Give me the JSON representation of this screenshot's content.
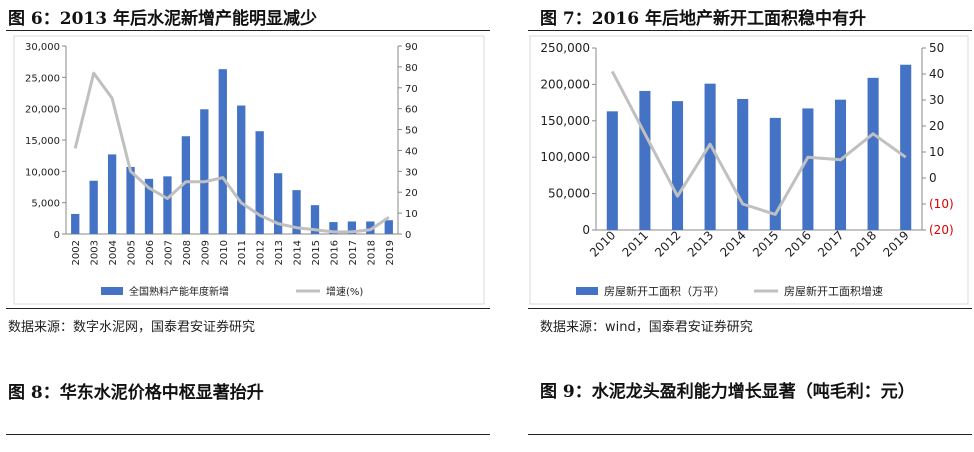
{
  "figures": [
    {
      "title": "图 6：2013 年后水泥新增产能明显减少",
      "source": "数据来源：数字水泥网，国泰君安证券研究"
    },
    {
      "title": "图 7：2016 年后地产新开工面积稳中有升",
      "source": "数据来源：wind，国泰君安证券研究"
    },
    {
      "title": "图 8：华东水泥价格中枢显著抬升"
    },
    {
      "title": "图 9：水泥龙头盈利能力增长显著（吨毛利：元）"
    }
  ],
  "chart_data": [
    {
      "type": "bar",
      "categories": [
        "2002",
        "2003",
        "2004",
        "2005",
        "2006",
        "2007",
        "2008",
        "2009",
        "2010",
        "2011",
        "2012",
        "2013",
        "2014",
        "2015",
        "2016",
        "2017",
        "2018",
        "2019"
      ],
      "series": [
        {
          "name": "全国熟料产能年度新增",
          "type": "bar",
          "axis": "left",
          "values": [
            3200,
            8500,
            12700,
            10700,
            8800,
            9200,
            15600,
            19900,
            26300,
            20500,
            16400,
            9700,
            7000,
            4600,
            1900,
            2000,
            2000,
            2200
          ]
        },
        {
          "name": "增速(%)",
          "type": "line",
          "axis": "right",
          "values": [
            41,
            77,
            65,
            30,
            22,
            17,
            25,
            25,
            27,
            15,
            9,
            5,
            3,
            2,
            1,
            1,
            2,
            8
          ]
        }
      ],
      "ylim_left": [
        0,
        30000
      ],
      "yticks_left": [
        "0",
        "5,000",
        "10,000",
        "15,000",
        "20,000",
        "25,000",
        "30,000"
      ],
      "ylim_right": [
        0,
        90
      ],
      "yticks_right": [
        "0",
        "10",
        "20",
        "30",
        "40",
        "50",
        "60",
        "70",
        "80",
        "90"
      ],
      "legend": "bottom",
      "colors": {
        "bar": "#4472C4",
        "line": "#C0C0C0"
      }
    },
    {
      "type": "bar",
      "categories": [
        "2010",
        "2011",
        "2012",
        "2013",
        "2014",
        "2015",
        "2016",
        "2017",
        "2018",
        "2019"
      ],
      "series": [
        {
          "name": "房屋新开工面积（万平）",
          "type": "bar",
          "axis": "left",
          "values": [
            163000,
            191000,
            177000,
            201000,
            180000,
            154000,
            167000,
            179000,
            209000,
            227000
          ]
        },
        {
          "name": "房屋新开工面积增速",
          "type": "line",
          "axis": "right",
          "values": [
            41,
            17,
            -7,
            13,
            -10,
            -14,
            8,
            7,
            17,
            8
          ]
        }
      ],
      "ylim_left": [
        0,
        250000
      ],
      "yticks_left": [
        "0",
        "50,000",
        "100,000",
        "150,000",
        "200,000",
        "250,000"
      ],
      "ylim_right": [
        -20,
        50
      ],
      "yticks_right": [
        "(20)",
        "(10)",
        "0",
        "10",
        "20",
        "30",
        "40",
        "50"
      ],
      "legend": "bottom",
      "colors": {
        "bar": "#4472C4",
        "line": "#C0C0C0",
        "negative_tick": "#E00000"
      }
    }
  ]
}
